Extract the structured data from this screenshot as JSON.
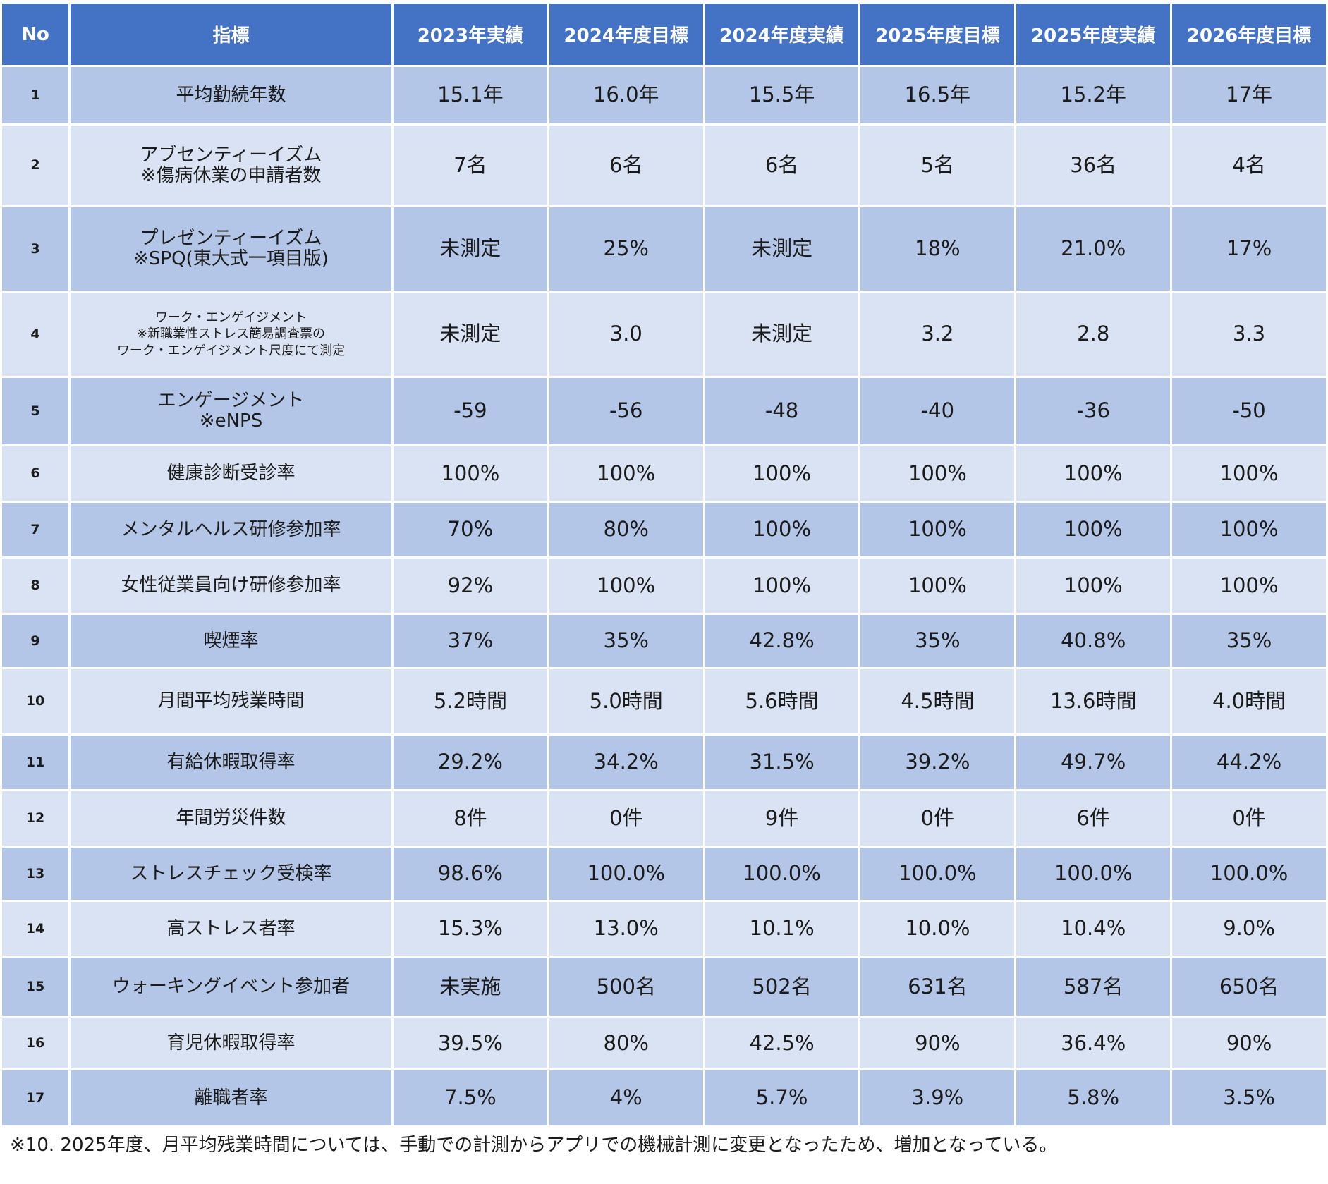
{
  "table": {
    "headers": [
      "No",
      "指標",
      "2023年実績",
      "2024年度目標",
      "2024年度実績",
      "2025年度目標",
      "2025年度実績",
      "2026年度目標"
    ],
    "rows": [
      {
        "no": "1",
        "label": "平均勤続年数",
        "values": [
          "15.1年",
          "16.0年",
          "15.5年",
          "16.5年",
          "15.2年",
          "17年"
        ]
      },
      {
        "no": "2",
        "label": "アブセンティーイズム\n※傷病休業の申請者数",
        "values": [
          "7名",
          "6名",
          "6名",
          "5名",
          "36名",
          "4名"
        ]
      },
      {
        "no": "3",
        "label": "プレゼンティーイズム\n※SPQ(東大式一項目版)",
        "values": [
          "未測定",
          "25%",
          "未測定",
          "18%",
          "21.0%",
          "17%"
        ]
      },
      {
        "no": "4",
        "label": "ワーク・エンゲイジメント\n※新職業性ストレス簡易調査票の\nワーク・エンゲイジメント尺度にて測定",
        "values": [
          "未測定",
          "3.0",
          "未測定",
          "3.2",
          "2.8",
          "3.3"
        ]
      },
      {
        "no": "5",
        "label": "エンゲージメント\n※eNPS",
        "values": [
          "-59",
          "-56",
          "-48",
          "-40",
          "-36",
          "-50"
        ]
      },
      {
        "no": "6",
        "label": "健康診断受診率",
        "values": [
          "100%",
          "100%",
          "100%",
          "100%",
          "100%",
          "100%"
        ]
      },
      {
        "no": "7",
        "label": "メンタルヘルス研修参加率",
        "values": [
          "70%",
          "80%",
          "100%",
          "100%",
          "100%",
          "100%"
        ]
      },
      {
        "no": "8",
        "label": "女性従業員向け研修参加率",
        "values": [
          "92%",
          "100%",
          "100%",
          "100%",
          "100%",
          "100%"
        ]
      },
      {
        "no": "9",
        "label": "喫煙率",
        "values": [
          "37%",
          "35%",
          "42.8%",
          "35%",
          "40.8%",
          "35%"
        ]
      },
      {
        "no": "10",
        "label": "月間平均残業時間",
        "values": [
          "5.2時間",
          "5.0時間",
          "5.6時間",
          "4.5時間",
          "13.6時間",
          "4.0時間"
        ]
      },
      {
        "no": "11",
        "label": "有給休暇取得率",
        "values": [
          "29.2%",
          "34.2%",
          "31.5%",
          "39.2%",
          "49.7%",
          "44.2%"
        ]
      },
      {
        "no": "12",
        "label": "年間労災件数",
        "values": [
          "8件",
          "0件",
          "9件",
          "0件",
          "6件",
          "0件"
        ]
      },
      {
        "no": "13",
        "label": "ストレスチェック受検率",
        "values": [
          "98.6%",
          "100.0%",
          "100.0%",
          "100.0%",
          "100.0%",
          "100.0%"
        ]
      },
      {
        "no": "14",
        "label": "高ストレス者率",
        "values": [
          "15.3%",
          "13.0%",
          "10.1%",
          "10.0%",
          "10.4%",
          "9.0%"
        ]
      },
      {
        "no": "15",
        "label": "ウォーキングイベント参加者",
        "values": [
          "未実施",
          "500名",
          "502名",
          "631名",
          "587名",
          "650名"
        ]
      },
      {
        "no": "16",
        "label": "育児休暇取得率",
        "values": [
          "39.5%",
          "80%",
          "42.5%",
          "90%",
          "36.4%",
          "90%"
        ]
      },
      {
        "no": "17",
        "label": "離職者率",
        "values": [
          "7.5%",
          "4%",
          "5.7%",
          "3.9%",
          "5.8%",
          "3.5%"
        ]
      }
    ]
  },
  "footnote": "※10. 2025年度、月平均残業時間については、手動での計測からアプリでの機械計測に変更となったため、増加となっている。"
}
